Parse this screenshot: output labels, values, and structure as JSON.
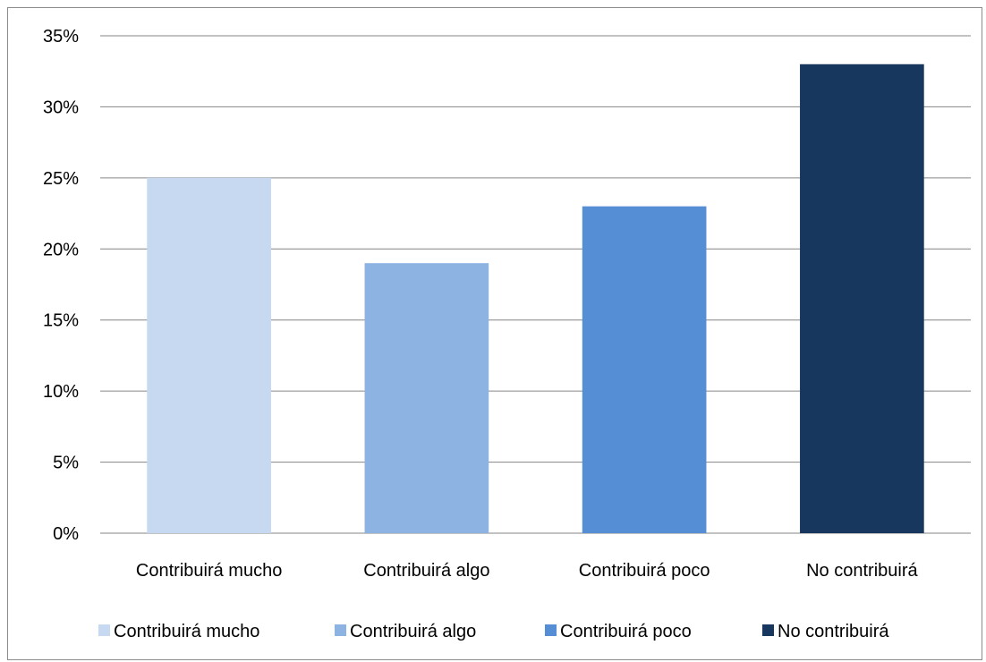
{
  "chart_data": {
    "type": "bar",
    "categories": [
      "Contribuirá mucho",
      "Contribuirá algo",
      "Contribuirá poco",
      "No contribuirá"
    ],
    "values": [
      25,
      19,
      23,
      33
    ],
    "colors": [
      "#c6d9f1",
      "#8db3e2",
      "#558ed5",
      "#17375e"
    ],
    "ylim": [
      0,
      35
    ],
    "yticks": [
      0,
      5,
      10,
      15,
      20,
      25,
      30,
      35
    ],
    "ytick_suffix": "%",
    "grid": true,
    "legend": {
      "position": "bottom",
      "entries": [
        "Contribuirá mucho",
        "Contribuirá algo",
        "Contribuirá poco",
        "No contribuirá"
      ]
    }
  }
}
